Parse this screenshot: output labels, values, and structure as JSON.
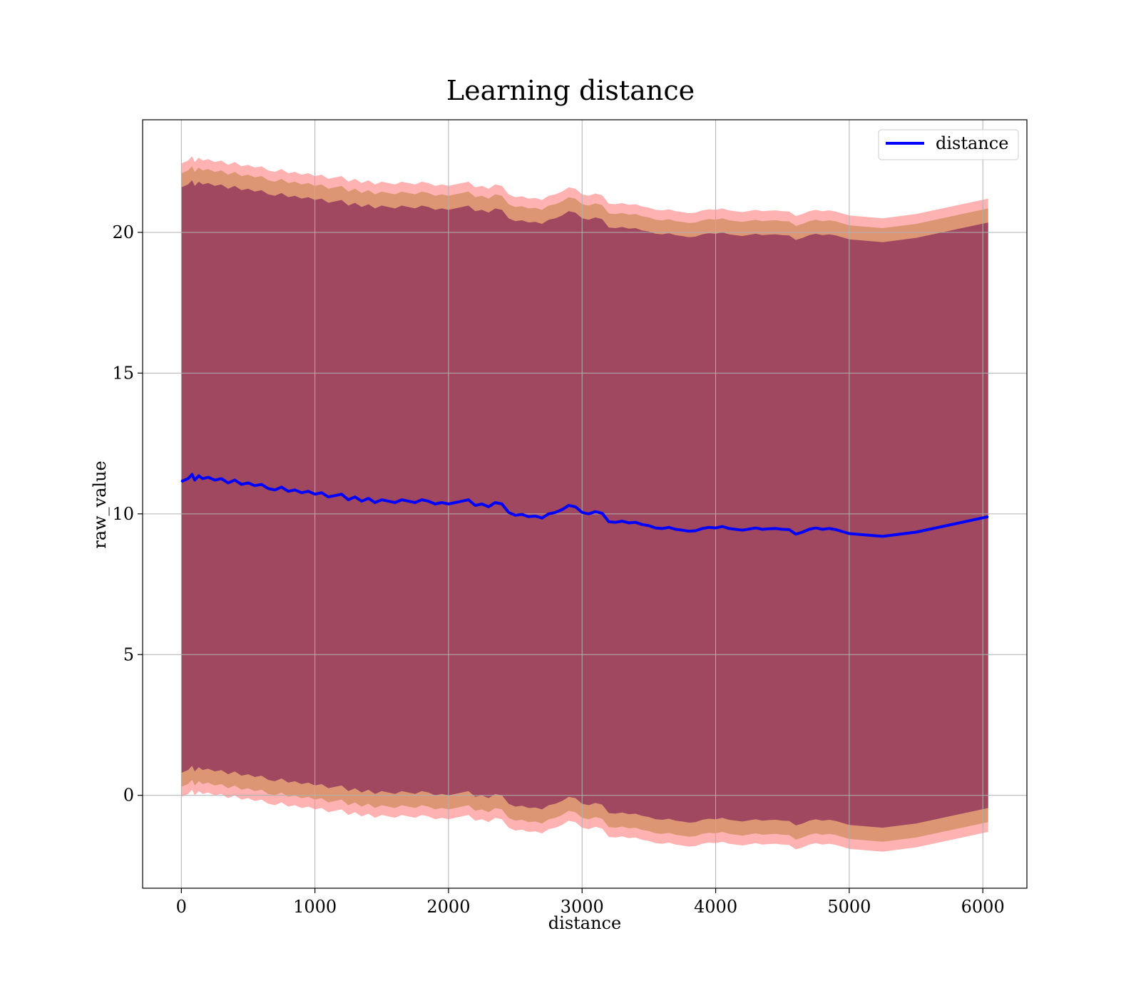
{
  "chart_data": {
    "type": "line",
    "title": "Learning distance",
    "xlabel": "distance",
    "ylabel": "raw_value",
    "xlim": [
      -290,
      6330
    ],
    "ylim": [
      -3.3,
      24.0
    ],
    "xticks": [
      0,
      1000,
      2000,
      3000,
      4000,
      5000,
      6000
    ],
    "yticks": [
      0,
      5,
      10,
      15,
      20
    ],
    "grid": true,
    "legend": {
      "position": "top-right",
      "entries": [
        "distance"
      ]
    },
    "colors": {
      "line": "#0000ff",
      "band_outer": "#ff0000",
      "band_middle": "#c08040",
      "band_inner": "#8b2e5a"
    },
    "series": [
      {
        "name": "distance",
        "x": [
          0,
          50,
          80,
          100,
          130,
          160,
          200,
          250,
          300,
          350,
          400,
          450,
          500,
          550,
          600,
          650,
          700,
          750,
          800,
          850,
          900,
          950,
          1000,
          1050,
          1100,
          1150,
          1200,
          1250,
          1300,
          1350,
          1400,
          1450,
          1500,
          1550,
          1600,
          1650,
          1700,
          1750,
          1800,
          1850,
          1900,
          1950,
          2000,
          2050,
          2100,
          2150,
          2200,
          2250,
          2300,
          2350,
          2400,
          2450,
          2500,
          2550,
          2600,
          2650,
          2700,
          2750,
          2800,
          2850,
          2900,
          2950,
          3000,
          3050,
          3100,
          3150,
          3200,
          3250,
          3300,
          3350,
          3400,
          3450,
          3500,
          3550,
          3600,
          3650,
          3700,
          3750,
          3800,
          3850,
          3900,
          3950,
          4000,
          4050,
          4100,
          4200,
          4300,
          4350,
          4400,
          4450,
          4500,
          4550,
          4600,
          4650,
          4700,
          4750,
          4800,
          4850,
          4900,
          5000,
          5250,
          5500,
          6040
        ],
        "y": [
          11.15,
          11.25,
          11.4,
          11.2,
          11.35,
          11.25,
          11.3,
          11.2,
          11.25,
          11.1,
          11.2,
          11.05,
          11.1,
          11.0,
          11.05,
          10.9,
          10.85,
          10.95,
          10.8,
          10.85,
          10.75,
          10.8,
          10.7,
          10.75,
          10.6,
          10.65,
          10.7,
          10.5,
          10.6,
          10.45,
          10.55,
          10.4,
          10.5,
          10.45,
          10.4,
          10.5,
          10.45,
          10.4,
          10.5,
          10.45,
          10.35,
          10.4,
          10.35,
          10.4,
          10.45,
          10.5,
          10.3,
          10.35,
          10.25,
          10.4,
          10.35,
          10.05,
          9.95,
          9.98,
          9.9,
          9.92,
          9.85,
          10.0,
          10.05,
          10.15,
          10.3,
          10.25,
          10.05,
          10.0,
          10.08,
          10.02,
          9.72,
          9.7,
          9.74,
          9.68,
          9.7,
          9.62,
          9.58,
          9.5,
          9.48,
          9.52,
          9.45,
          9.42,
          9.38,
          9.4,
          9.48,
          9.52,
          9.5,
          9.55,
          9.48,
          9.42,
          9.5,
          9.45,
          9.47,
          9.48,
          9.45,
          9.44,
          9.28,
          9.35,
          9.45,
          9.5,
          9.45,
          9.48,
          9.44,
          9.3,
          9.2,
          9.35,
          9.9
        ]
      }
    ],
    "bands": [
      {
        "name": "outer",
        "upper_offset": 11.3,
        "lower_offset": 11.2
      },
      {
        "name": "middle",
        "upper_offset": 10.95,
        "lower_offset": 10.85
      },
      {
        "name": "inner",
        "upper_offset": 10.45,
        "lower_offset": 10.35
      }
    ]
  }
}
